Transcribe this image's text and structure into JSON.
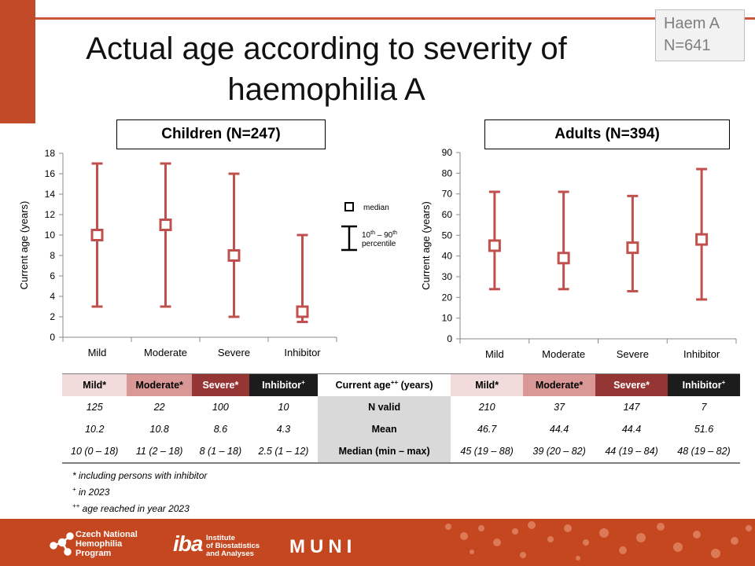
{
  "title": "Actual age according to severity of haemophilia A",
  "badge": {
    "line1": "Haem A",
    "line2": "N=641"
  },
  "legend": {
    "median": "median",
    "range_line1": "10th – 90th",
    "range_line2": "percentile"
  },
  "colors": {
    "accent": "#c24a28",
    "series": "#c0504d",
    "footer": "#c4471f"
  },
  "chart_data": [
    {
      "type": "scatter",
      "title": "Children (N=247)",
      "ylabel": "Current age (years)",
      "ylim": [
        0,
        18
      ],
      "yticks": [
        0,
        2,
        4,
        6,
        8,
        10,
        12,
        14,
        16,
        18
      ],
      "categories": [
        "Mild",
        "Moderate",
        "Severe",
        "Inhibitor"
      ],
      "median": [
        10,
        11,
        8,
        2.5
      ],
      "p10": [
        3,
        3,
        2,
        1.5
      ],
      "p90": [
        17,
        17,
        16,
        10
      ]
    },
    {
      "type": "scatter",
      "title": "Adults (N=394)",
      "ylabel": "Current age (years)",
      "ylim": [
        0,
        90
      ],
      "yticks": [
        0,
        10,
        20,
        30,
        40,
        50,
        60,
        70,
        80,
        90
      ],
      "categories": [
        "Mild",
        "Moderate",
        "Severe",
        "Inhibitor"
      ],
      "median": [
        45,
        39,
        44,
        48
      ],
      "p10": [
        24,
        24,
        23,
        19
      ],
      "p90": [
        71,
        71,
        69,
        82
      ]
    }
  ],
  "table": {
    "header": [
      "Mild*",
      "Moderate*",
      "Severe*",
      "Inhibitor+",
      "Current age++ (years)",
      "Mild*",
      "Moderate*",
      "Severe*",
      "Inhibitor+"
    ],
    "rows": [
      {
        "label": "N valid",
        "children": [
          "125",
          "22",
          "100",
          "10"
        ],
        "adults": [
          "210",
          "37",
          "147",
          "7"
        ]
      },
      {
        "label": "Mean",
        "children": [
          "10.2",
          "10.8",
          "8.6",
          "4.3"
        ],
        "adults": [
          "46.7",
          "44.4",
          "44.4",
          "51.6"
        ]
      },
      {
        "label": "Median (min – max)",
        "children": [
          "10 (0 – 18)",
          "11 (2 – 18)",
          "8 (1 – 18)",
          "2.5 (1 – 12)"
        ],
        "adults": [
          "45 (19 – 88)",
          "39 (20 – 82)",
          "44 (19 – 84)",
          "48 (19 – 82)"
        ]
      }
    ]
  },
  "footnotes": [
    "* including persons with inhibitor",
    "+ in 2023",
    "++ age reached in year 2023"
  ],
  "footer": {
    "cnhp": [
      "Czech National",
      "Hemophilia",
      "Program"
    ],
    "iba_mark": "iba",
    "iba": [
      "Institute",
      "of Biostatistics",
      "and Analyses"
    ],
    "muni": "MUNI"
  }
}
